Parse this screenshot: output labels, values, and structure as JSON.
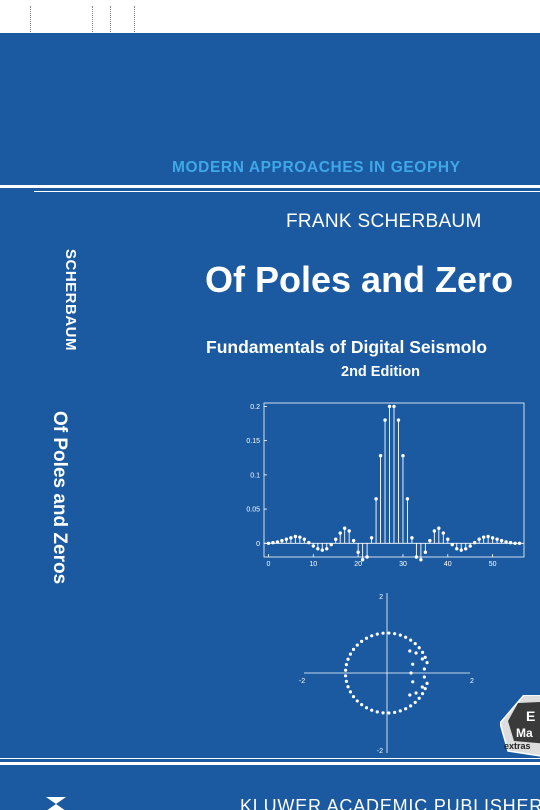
{
  "cover": {
    "series": "MODERN APPROACHES IN GEOPHY",
    "spine_author": "SCHERBAUM",
    "spine_title": "Of Poles and Zeros",
    "author": "FRANK SCHERBAUM",
    "title": "Of Poles and Zero",
    "subtitle": "Fundamentals of Digital Seismolo",
    "edition": "2nd Edition",
    "publisher": "KLUWER ACADEMIC PUBLISHERS",
    "badge_lines": [
      "E",
      "Ma",
      "extras"
    ]
  },
  "colors": {
    "cover_blue": "#1b5aa0",
    "series_cyan": "#3fa8e8",
    "white": "#ffffff"
  },
  "chart_data": [
    {
      "type": "stem",
      "xlim": [
        -1,
        57
      ],
      "ylim": [
        -0.02,
        0.205
      ],
      "xticks": [
        0,
        10,
        20,
        30,
        40,
        50
      ],
      "xtick_labels": [
        "0",
        "10",
        "20",
        "30",
        "40",
        "50"
      ],
      "yticks": [
        0,
        0.05,
        0.1,
        0.15,
        0.2
      ],
      "ytick_labels": [
        "0",
        "0.05",
        "0.1",
        "0.15",
        "0.2"
      ],
      "x": [
        0,
        1,
        2,
        3,
        4,
        5,
        6,
        7,
        8,
        9,
        10,
        11,
        12,
        13,
        14,
        15,
        16,
        17,
        18,
        19,
        20,
        21,
        22,
        23,
        24,
        25,
        26,
        27,
        28,
        29,
        30,
        31,
        32,
        33,
        34,
        35,
        36,
        37,
        38,
        39,
        40,
        41,
        42,
        43,
        44,
        45,
        46,
        47,
        48,
        49,
        50,
        51,
        52,
        53,
        54,
        55,
        56
      ],
      "values": [
        0,
        0.001,
        0.002,
        0.004,
        0.006,
        0.008,
        0.01,
        0.009,
        0.006,
        0.001,
        -0.004,
        -0.008,
        -0.01,
        -0.008,
        -0.002,
        0.006,
        0.015,
        0.022,
        0.018,
        0.004,
        -0.013,
        -0.024,
        -0.02,
        0.008,
        0.065,
        0.128,
        0.18,
        0.2,
        0.2,
        0.18,
        0.128,
        0.065,
        0.008,
        -0.02,
        -0.024,
        -0.013,
        0.004,
        0.018,
        0.022,
        0.015,
        0.006,
        -0.002,
        -0.008,
        -0.01,
        -0.008,
        -0.004,
        0.001,
        0.006,
        0.009,
        0.01,
        0.008,
        0.006,
        0.004,
        0.002,
        0.001,
        0,
        0
      ]
    },
    {
      "type": "scatter",
      "xlim": [
        -2,
        2
      ],
      "ylim": [
        -2,
        2
      ],
      "xtick_labels": [
        "-2",
        "2"
      ],
      "ytick_labels": [
        "2",
        "-2"
      ],
      "zeros_unit_circle_deg_from": 15,
      "zeros_unit_circle_deg_to": 345,
      "zeros_unit_circle_count": 42,
      "poles": [
        [
          0.55,
          0.55
        ],
        [
          0.7,
          0.5
        ],
        [
          0.85,
          0.35
        ],
        [
          0.9,
          0.1
        ],
        [
          0.9,
          -0.1
        ],
        [
          0.85,
          -0.35
        ],
        [
          0.7,
          -0.5
        ],
        [
          0.55,
          -0.55
        ],
        [
          0.62,
          0.22
        ],
        [
          0.62,
          -0.22
        ]
      ],
      "point_on_axis": [
        [
          0.58,
          0
        ]
      ]
    }
  ]
}
